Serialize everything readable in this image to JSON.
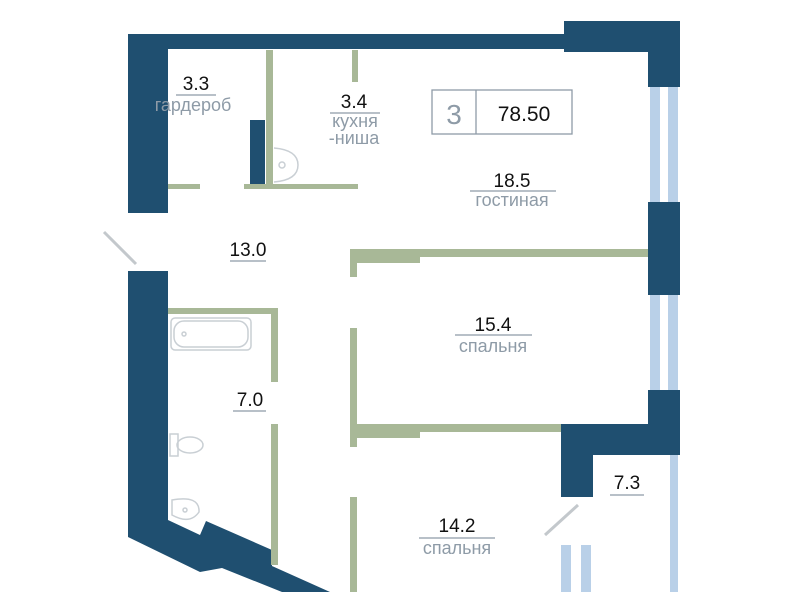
{
  "summary": {
    "rooms": "3",
    "total_area": "78.50"
  },
  "rooms": [
    {
      "area": "3.3",
      "name": "гардероб"
    },
    {
      "area": "3.4",
      "name": "кухня",
      "name2": "-ниша"
    },
    {
      "area": "18.5",
      "name": "гостиная"
    },
    {
      "area": "13.0"
    },
    {
      "area": "15.4",
      "name": "спальня"
    },
    {
      "area": "7.0"
    },
    {
      "area": "7.3"
    },
    {
      "area": "14.2",
      "name": "спальня"
    }
  ],
  "colors": {
    "wall": "#1f4f70",
    "partition": "#a8b897",
    "window": "#b9d0e8",
    "label": "#8e9ba7"
  }
}
